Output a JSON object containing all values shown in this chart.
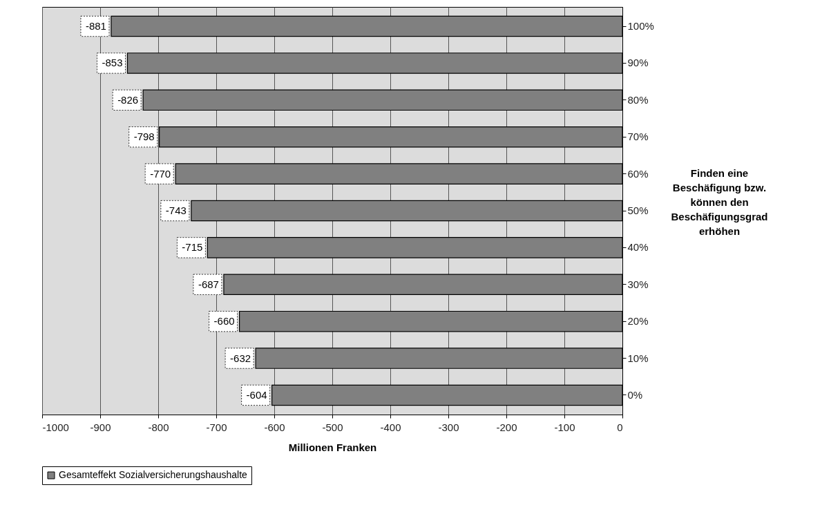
{
  "chart_data": {
    "type": "bar",
    "orientation": "horizontal",
    "categories": [
      "100%",
      "90%",
      "80%",
      "70%",
      "60%",
      "50%",
      "40%",
      "30%",
      "20%",
      "10%",
      "0%"
    ],
    "series": [
      {
        "name": "Gesamteffekt Sozialversicherungshaushalte",
        "color": "#808080",
        "values": [
          -881,
          -853,
          -826,
          -798,
          -770,
          -743,
          -715,
          -687,
          -660,
          -632,
          -604
        ]
      }
    ],
    "xlim": [
      -1000,
      0
    ],
    "xticks": [
      -1000,
      -900,
      -800,
      -700,
      -600,
      -500,
      -400,
      -300,
      -200,
      -100,
      0
    ],
    "xlabel": "Millionen Franken",
    "ylabel": "Finden eine Beschäfigung bzw. können den Beschäfigungsgrad erhöhen",
    "grid": "x",
    "legend": "bottom",
    "data_labels": true
  }
}
